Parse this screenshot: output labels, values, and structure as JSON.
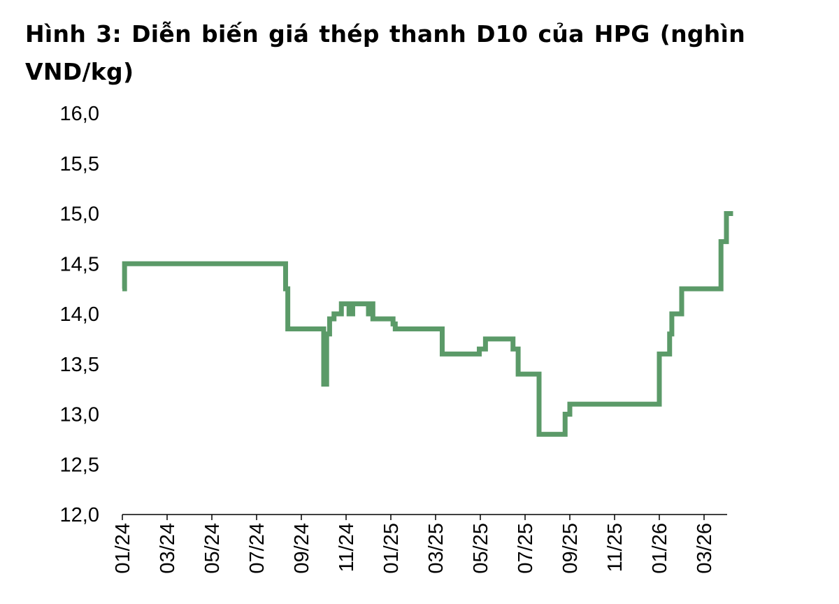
{
  "chart_data": {
    "type": "line",
    "title": "Hình 3: Diễn biến giá thép thanh D10 của HPG (nghìn VND/kg)",
    "xlabel": "",
    "ylabel": "",
    "ylim": [
      12.0,
      16.0
    ],
    "xlim": [
      "2024-01-01",
      "2026-04-15"
    ],
    "grid": false,
    "legend": "none",
    "y_ticks": [
      "12,0",
      "12,5",
      "13,0",
      "13,5",
      "14,0",
      "14,5",
      "15,0",
      "15,5",
      "16,0"
    ],
    "x_ticks": [
      "01/24",
      "03/24",
      "05/24",
      "07/24",
      "09/24",
      "11/24",
      "01/25",
      "03/25",
      "05/25",
      "07/25",
      "09/25",
      "11/25",
      "01/26",
      "03/26"
    ],
    "series": [
      {
        "color": "#5b9a68",
        "step": true,
        "x": [
          "2024-01-01",
          "2024-01-04",
          "2024-07-01",
          "2024-08-10",
          "2024-08-13",
          "2024-10-01",
          "2024-10-03",
          "2024-10-05",
          "2024-10-09",
          "2024-10-15",
          "2024-10-25",
          "2024-11-01",
          "2024-11-05",
          "2024-11-08",
          "2024-11-10",
          "2024-11-16",
          "2024-12-01",
          "2024-12-03",
          "2024-12-07",
          "2025-01-01",
          "2025-01-04",
          "2025-01-07",
          "2025-02-25",
          "2025-03-10",
          "2025-04-25",
          "2025-04-30",
          "2025-05-05",
          "2025-05-08",
          "2025-06-15",
          "2025-06-18",
          "2025-06-22",
          "2025-07-01",
          "2025-07-20",
          "2025-08-10",
          "2025-08-15",
          "2025-08-25",
          "2025-09-01",
          "2025-11-10",
          "2025-12-25",
          "2026-01-01",
          "2026-01-08",
          "2026-01-15",
          "2026-01-18",
          "2026-02-01",
          "2026-02-06",
          "2026-02-10",
          "2026-02-12",
          "2026-02-20",
          "2026-03-20",
          "2026-03-24",
          "2026-03-28",
          "2026-04-01",
          "2026-04-10"
        ],
        "values": [
          14.25,
          14.5,
          14.5,
          14.25,
          13.85,
          13.3,
          13.3,
          13.8,
          13.95,
          14.0,
          14.1,
          14.1,
          14.0,
          14.0,
          14.1,
          14.1,
          14.0,
          14.1,
          13.95,
          13.95,
          13.9,
          13.85,
          13.85,
          13.6,
          13.6,
          13.65,
          13.65,
          13.75,
          13.65,
          13.65,
          13.4,
          13.4,
          12.8,
          12.8,
          12.8,
          13.0,
          13.1,
          13.1,
          13.1,
          13.6,
          13.6,
          13.8,
          14.0,
          14.25,
          14.25,
          14.25,
          14.25,
          14.25,
          14.25,
          14.72,
          14.72,
          15.0,
          15.0
        ]
      }
    ]
  }
}
